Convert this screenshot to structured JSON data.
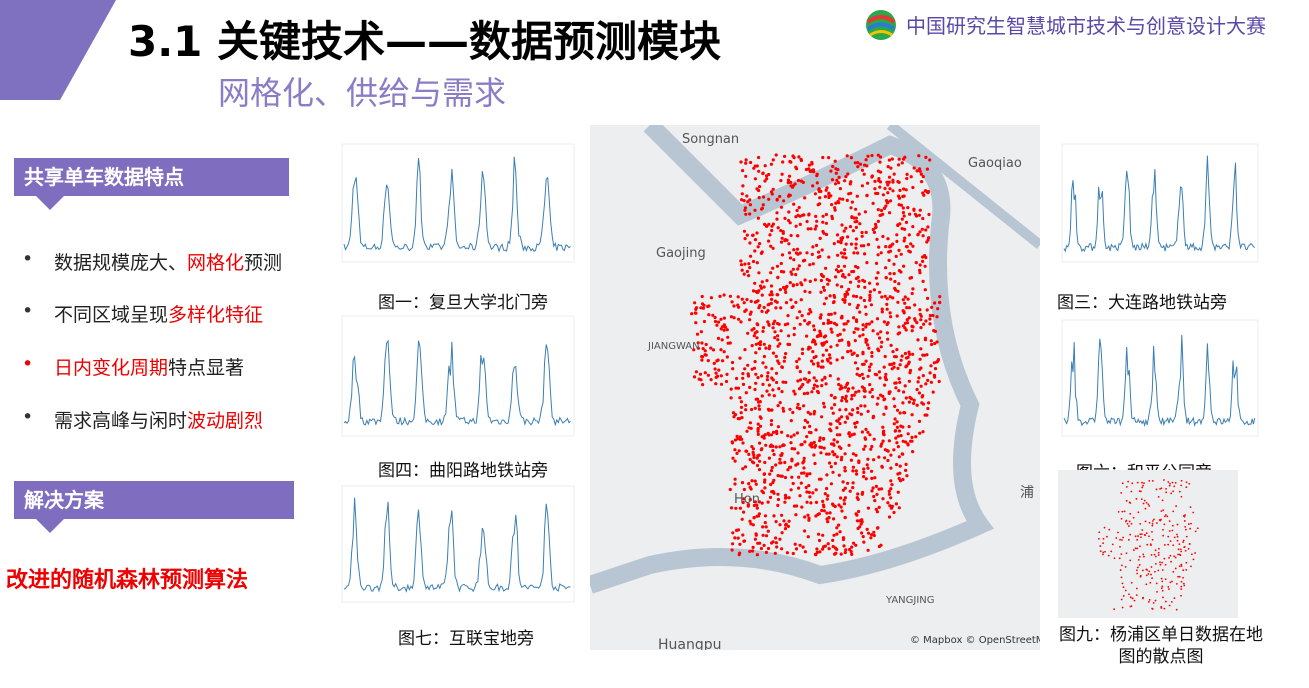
{
  "header": {
    "title": "3.1 关键技术——数据预测模块",
    "subtitle": "网格化、供给与需求",
    "logo_text": "中国研究生智慧城市技术与创意设计大赛"
  },
  "features": {
    "heading": "共享单车数据特点",
    "bullets": [
      [
        {
          "text": "数据规模庞大、",
          "highlight": false
        },
        {
          "text": "网格化",
          "highlight": true
        },
        {
          "text": "预测",
          "highlight": false
        }
      ],
      [
        {
          "text": "不同区域呈现",
          "highlight": false
        },
        {
          "text": "多样化特征",
          "highlight": true
        }
      ],
      [
        {
          "text": "日内变化周期",
          "highlight": true
        },
        {
          "text": "特点显著",
          "highlight": false
        }
      ],
      [
        {
          "text": "需求高峰与闲时",
          "highlight": false
        },
        {
          "text": "波动剧烈",
          "highlight": true
        }
      ]
    ]
  },
  "solution": {
    "heading": "解决方案",
    "text": "改进的随机森林预测算法"
  },
  "figures": [
    {
      "caption": "图一：复旦大学北门旁"
    },
    {
      "caption": "图四：曲阳路地铁站旁"
    },
    {
      "caption": "图七：互联宝地旁"
    },
    {
      "caption": "图三：大连路地铁站旁"
    },
    {
      "caption": "图六：和平公园旁"
    },
    {
      "caption": "图九：杨浦区单日数据在地图的散点图"
    }
  ],
  "map": {
    "labels": [
      "Songnan",
      "Gaoqiao",
      "Gaojing",
      "JIANGWAN",
      "Hon",
      "YANGJING",
      "Huangpu",
      "浦"
    ],
    "attribution": "© Mapbox © OpenStreetMap"
  }
}
